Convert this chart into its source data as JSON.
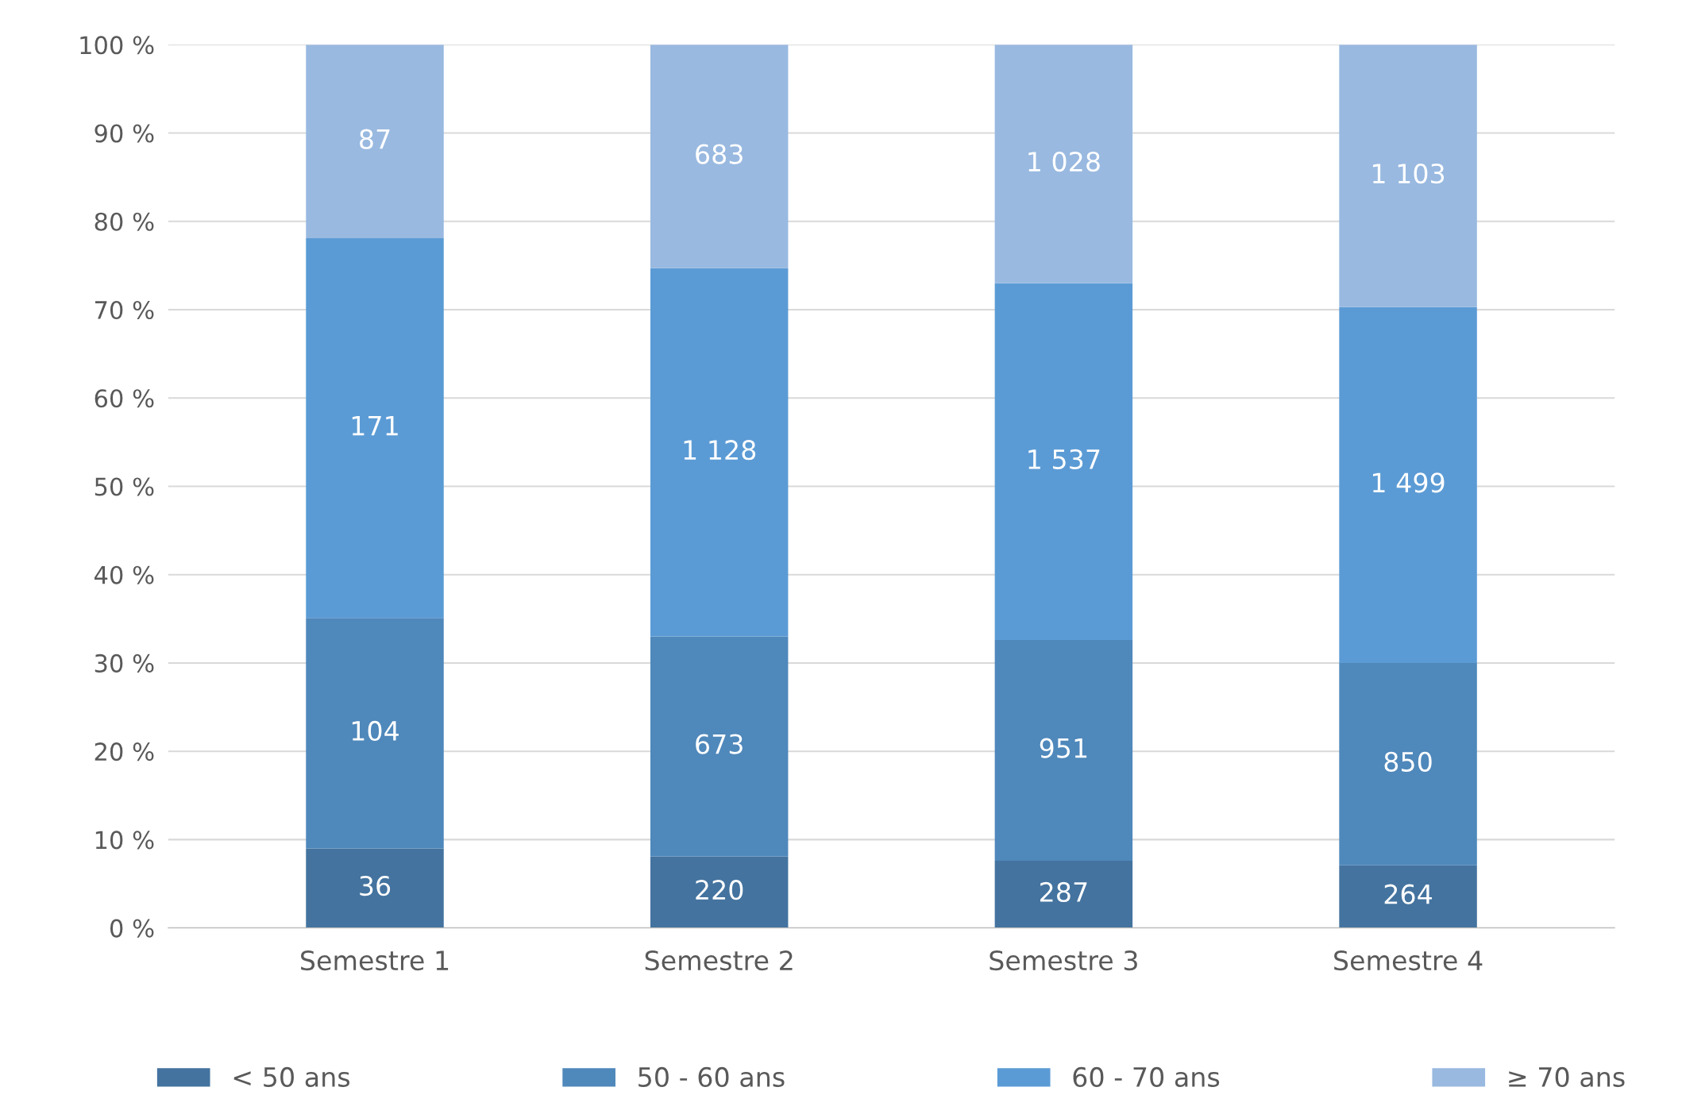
{
  "chart_data": {
    "type": "bar",
    "stacked": true,
    "categories": [
      "Semestre 1",
      "Semestre 2",
      "Semestre 3",
      "Semestre 4"
    ],
    "series": [
      {
        "name": "< 50 ans",
        "color": "#44739f",
        "values": [
          9.0,
          8.1,
          7.6,
          7.1
        ]
      },
      {
        "name": "50 - 60 ans",
        "color": "#4f88bb",
        "values": [
          26.1,
          24.9,
          25.0,
          22.9
        ]
      },
      {
        "name": "60 - 70 ans",
        "color": "#5b9bd5",
        "values": [
          43.0,
          41.7,
          40.4,
          40.3
        ]
      },
      {
        "name": "≥ 70 ans",
        "color": "#99b9e0",
        "values": [
          21.9,
          25.3,
          27.0,
          29.7
        ]
      }
    ],
    "annotations": [
      "36",
      "104",
      "171",
      "87",
      "220",
      "673",
      "1 128",
      "683",
      "287",
      "951",
      "1 537",
      "1 028",
      "264",
      "850",
      "1 499",
      "1 103"
    ],
    "ylim": [
      0,
      100
    ],
    "yticks": [
      {
        "value": 0,
        "label": "0 %"
      },
      {
        "value": 10,
        "label": "10 %"
      },
      {
        "value": 20,
        "label": "20 %"
      },
      {
        "value": 30,
        "label": "30 %"
      },
      {
        "value": 40,
        "label": "40 %"
      },
      {
        "value": 50,
        "label": "50 %"
      },
      {
        "value": 60,
        "label": "60 %"
      },
      {
        "value": 70,
        "label": "70 %"
      },
      {
        "value": 80,
        "label": "80 %"
      },
      {
        "value": 90,
        "label": "90 %"
      },
      {
        "value": 100,
        "label": "100 %"
      }
    ],
    "grid": "y",
    "legend": "bottom"
  }
}
